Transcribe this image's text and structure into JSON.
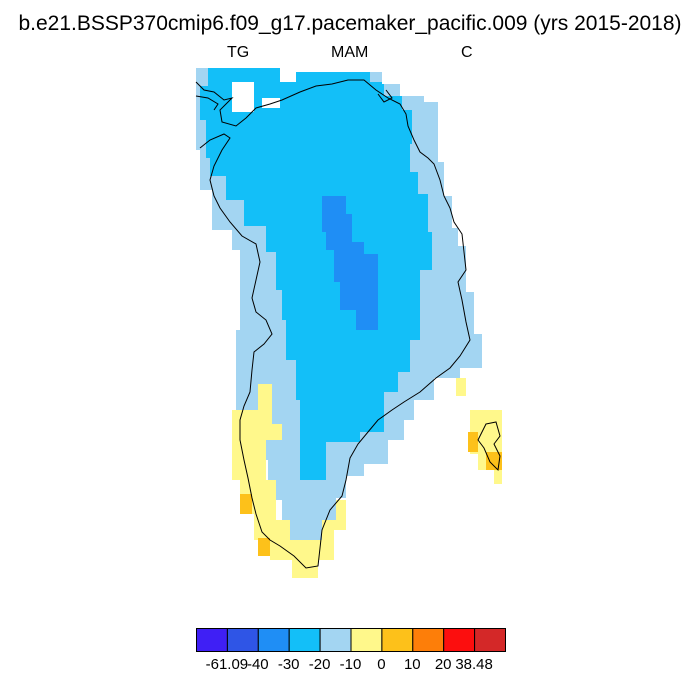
{
  "title": "b.e21.BSSP370cmip6.f09_g17.pacemaker_pacific.009 (yrs 2015-2018)",
  "subtitles": {
    "left": "TG",
    "center": "MAM",
    "right": "C"
  },
  "colorbar": {
    "colors": [
      "#3f1ff5",
      "#2f55e6",
      "#1f8ef5",
      "#13bff8",
      "#a3d5f2",
      "#fff88b",
      "#fdc11a",
      "#fd7e09",
      "#fc0e0e",
      "#d42828"
    ],
    "labels": [
      "-61.09",
      "-40",
      "-30",
      "-20",
      "-10",
      "0",
      "10",
      "20",
      "38.48"
    ]
  },
  "map_colors": {
    "deep_blue": "#1f8ef5",
    "blue": "#13bff8",
    "light_blue": "#a3d5f2",
    "yellow": "#fff88b",
    "orange": "#fdc11a",
    "coast": "#000000"
  }
}
